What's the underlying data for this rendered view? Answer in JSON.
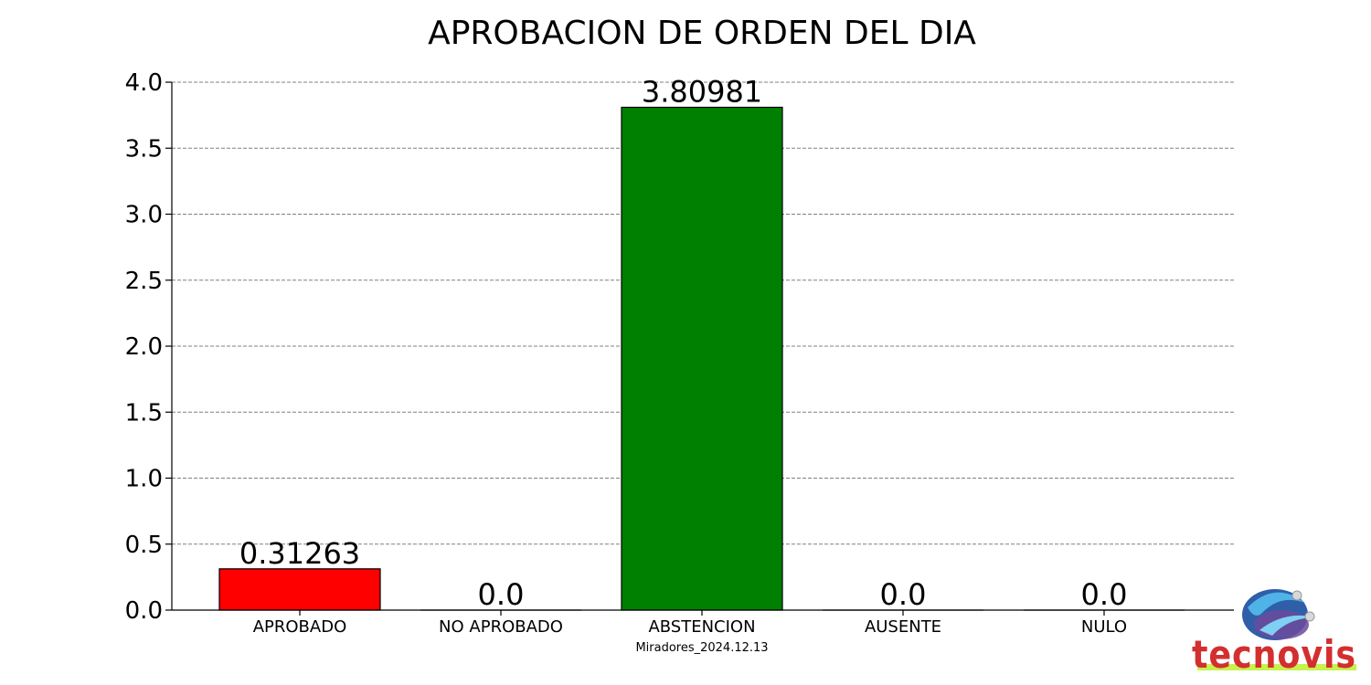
{
  "chart_data": {
    "type": "bar",
    "title": "APROBACION DE ORDEN DEL DIA",
    "xlabel": "Miradores_2024.12.13",
    "ylabel": "",
    "categories": [
      "APROBADO",
      "NO APROBADO",
      "ABSTENCION",
      "AUSENTE",
      "NULO"
    ],
    "values": [
      0.31263,
      0.0,
      3.80981,
      0.0,
      0.0
    ],
    "value_labels": [
      "0.31263",
      "0.0",
      "3.80981",
      "0.0",
      "0.0"
    ],
    "bar_colors": [
      "#ff0000",
      "#0000ff",
      "#008000",
      "#808080",
      "#000000"
    ],
    "ylim": [
      0,
      4.0
    ],
    "yticks": [
      0.0,
      0.5,
      1.0,
      1.5,
      2.0,
      2.5,
      3.0,
      3.5,
      4.0
    ],
    "ytick_labels": [
      "0.0",
      "0.5",
      "1.0",
      "1.5",
      "2.0",
      "2.5",
      "3.0",
      "3.5",
      "4.0"
    ],
    "grid": "horizontal dashed"
  },
  "logo": {
    "text": "tecnovis",
    "icon": "globe-logo-icon",
    "colors": {
      "text": "#d32f2f",
      "globe": "#3a6fb0",
      "underline": "#c6f24e"
    }
  }
}
